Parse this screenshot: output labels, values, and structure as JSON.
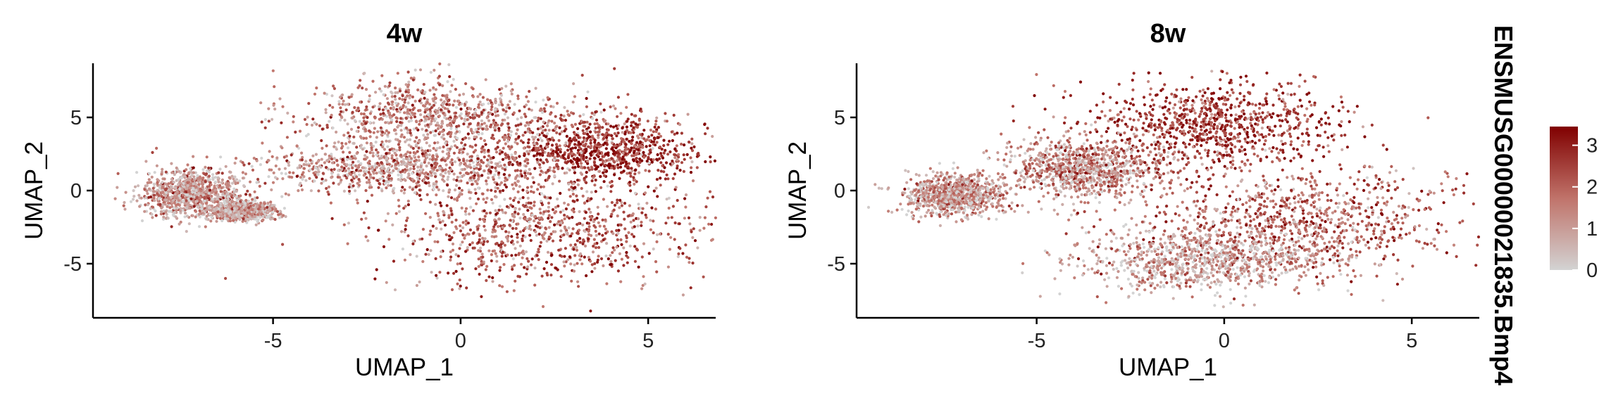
{
  "colors": {
    "low": "#d3d3d3",
    "mid": "#c0736a",
    "high": "#800000",
    "axis": "#000000"
  },
  "legend": {
    "title": "ENSMUSG00000021835.Bmp4",
    "ticks": [
      "0",
      "1",
      "2",
      "3"
    ],
    "tick_values": [
      0,
      1,
      2,
      3
    ],
    "range": [
      0,
      3.45
    ]
  },
  "chart_data": [
    {
      "type": "scatter",
      "title": "4w",
      "xlabel": "UMAP_1",
      "ylabel": "UMAP_2",
      "xlim": [
        -9.8,
        6.8
      ],
      "ylim": [
        -8.7,
        8.7
      ],
      "xticks": [
        -5,
        0,
        5
      ],
      "xtick_labels": [
        "-5",
        "0",
        "5"
      ],
      "yticks": [
        -5,
        0,
        5
      ],
      "ytick_labels": [
        "-5",
        "0",
        "5"
      ],
      "color_by": "ENSMUSG00000021835.Bmp4",
      "clusters": [
        {
          "region": "far-left cluster",
          "cx": -7.2,
          "cy": -0.2,
          "sx": 0.7,
          "sy": 0.8,
          "mean_expr": 1.1
        },
        {
          "region": "left small tail",
          "cx": -5.8,
          "cy": -1.4,
          "sx": 0.4,
          "sy": 0.3,
          "mean_expr": 0.8
        },
        {
          "region": "central band",
          "cx": -1.5,
          "cy": 1.5,
          "sx": 2.0,
          "sy": 0.9,
          "mean_expr": 1.3
        },
        {
          "region": "upper-right lobe",
          "cx": 3.8,
          "cy": 2.8,
          "sx": 1.4,
          "sy": 1.2,
          "mean_expr": 2.7
        },
        {
          "region": "lower-right mass",
          "cx": 2.0,
          "cy": -2.8,
          "sx": 2.2,
          "sy": 1.8,
          "mean_expr": 2.0
        },
        {
          "region": "upper scattered",
          "cx": -0.8,
          "cy": 5.0,
          "sx": 1.8,
          "sy": 1.3,
          "mean_expr": 1.5
        }
      ]
    },
    {
      "type": "scatter",
      "title": "8w",
      "xlabel": "UMAP_1",
      "ylabel": "UMAP_2",
      "xlim": [
        -9.8,
        6.8
      ],
      "ylim": [
        -8.7,
        8.7
      ],
      "xticks": [
        -5,
        0,
        5
      ],
      "xtick_labels": [
        "-5",
        "0",
        "5"
      ],
      "yticks": [
        -5,
        0,
        5
      ],
      "ytick_labels": [
        "-5",
        "0",
        "5"
      ],
      "color_by": "ENSMUSG00000021835.Bmp4",
      "clusters": [
        {
          "region": "far-left cluster",
          "cx": -7.2,
          "cy": -0.3,
          "sx": 0.7,
          "sy": 0.7,
          "mean_expr": 1.0
        },
        {
          "region": "left-center band",
          "cx": -3.8,
          "cy": 1.5,
          "sx": 1.0,
          "sy": 1.0,
          "mean_expr": 1.2
        },
        {
          "region": "upper lobe",
          "cx": -0.2,
          "cy": 4.4,
          "sx": 1.7,
          "sy": 1.5,
          "mean_expr": 2.6
        },
        {
          "region": "lower-right mass",
          "cx": 2.0,
          "cy": -2.0,
          "sx": 2.2,
          "sy": 1.8,
          "mean_expr": 1.9
        },
        {
          "region": "bottom spread",
          "cx": -0.5,
          "cy": -4.8,
          "sx": 1.7,
          "sy": 1.1,
          "mean_expr": 0.9
        }
      ]
    }
  ]
}
